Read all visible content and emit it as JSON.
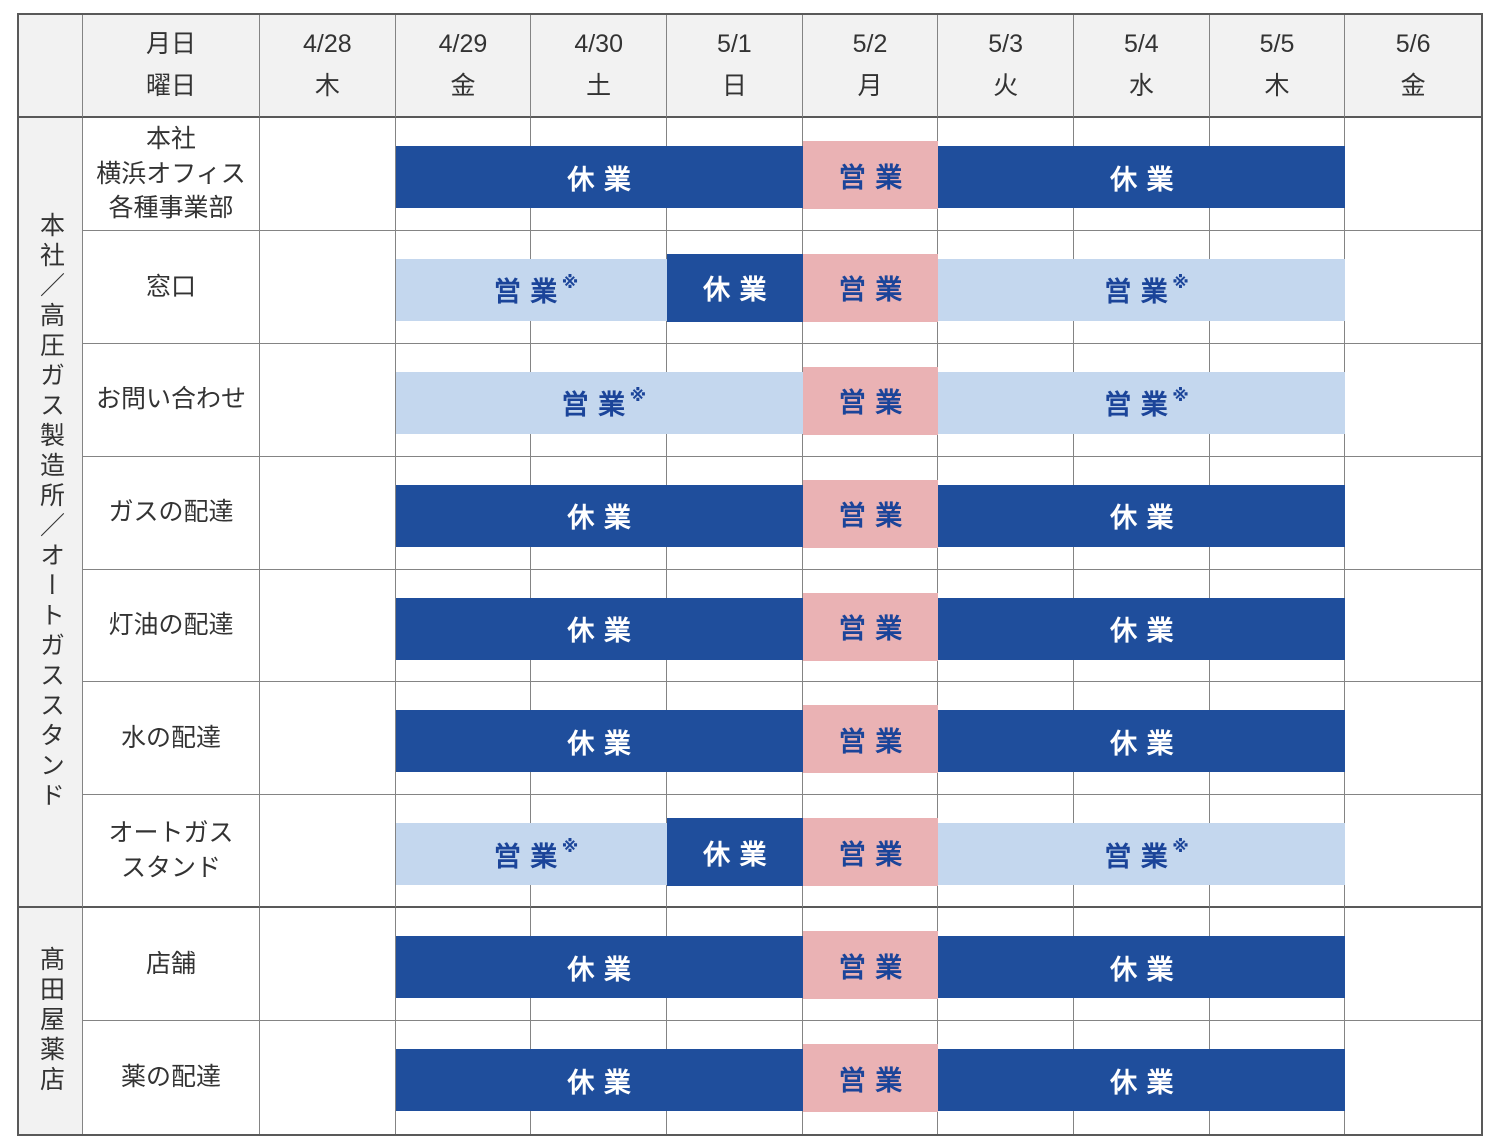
{
  "chart_data": {
    "type": "table",
    "description_kind": "golden-week-business-hours-calendar",
    "corner_header": [
      "月日",
      "曜日"
    ],
    "columns": [
      {
        "date": "4/28",
        "weekday": "木"
      },
      {
        "date": "4/29",
        "weekday": "金"
      },
      {
        "date": "4/30",
        "weekday": "土"
      },
      {
        "date": "5/1",
        "weekday": "日"
      },
      {
        "date": "5/2",
        "weekday": "月"
      },
      {
        "date": "5/3",
        "weekday": "火"
      },
      {
        "date": "5/4",
        "weekday": "水"
      },
      {
        "date": "5/5",
        "weekday": "木"
      },
      {
        "date": "5/6",
        "weekday": "金"
      }
    ],
    "status_legend": {
      "closed": {
        "label": "休業",
        "note": "",
        "bg": "#1F4E9C",
        "text": "#FFFFFF"
      },
      "open": {
        "label": "営業",
        "note": "",
        "bg": "#EAB2B4",
        "text": "#1B4499"
      },
      "open_note": {
        "label": "営業",
        "note": "※",
        "bg": "#C4D7EE",
        "text": "#1B4499"
      }
    },
    "header_bg": "#F2F2F2",
    "groups": [
      {
        "group_label": "本社／高圧ガス製造所／オートガススタンド",
        "rows": [
          {
            "label_lines": [
              "本社",
              "横浜オフィス",
              "各種事業部"
            ],
            "statuses": [
              "none",
              "closed",
              "closed",
              "closed",
              "open",
              "closed",
              "closed",
              "closed",
              "none"
            ]
          },
          {
            "label_lines": [
              "窓口"
            ],
            "statuses": [
              "none",
              "open_note",
              "open_note",
              "closed",
              "open",
              "open_note",
              "open_note",
              "open_note",
              "none"
            ]
          },
          {
            "label_lines": [
              "お問い合わせ"
            ],
            "statuses": [
              "none",
              "open_note",
              "open_note",
              "open_note",
              "open",
              "open_note",
              "open_note",
              "open_note",
              "none"
            ]
          },
          {
            "label_lines": [
              "ガスの配達"
            ],
            "statuses": [
              "none",
              "closed",
              "closed",
              "closed",
              "open",
              "closed",
              "closed",
              "closed",
              "none"
            ]
          },
          {
            "label_lines": [
              "灯油の配達"
            ],
            "statuses": [
              "none",
              "closed",
              "closed",
              "closed",
              "open",
              "closed",
              "closed",
              "closed",
              "none"
            ]
          },
          {
            "label_lines": [
              "水の配達"
            ],
            "statuses": [
              "none",
              "closed",
              "closed",
              "closed",
              "open",
              "closed",
              "closed",
              "closed",
              "none"
            ]
          },
          {
            "label_lines": [
              "オートガス",
              "スタンド"
            ],
            "statuses": [
              "none",
              "open_note",
              "open_note",
              "closed",
              "open",
              "open_note",
              "open_note",
              "open_note",
              "none"
            ]
          }
        ]
      },
      {
        "group_label": "髙田屋薬店",
        "rows": [
          {
            "label_lines": [
              "店舗"
            ],
            "statuses": [
              "none",
              "closed",
              "closed",
              "closed",
              "open",
              "closed",
              "closed",
              "closed",
              "none"
            ]
          },
          {
            "label_lines": [
              "薬の配達"
            ],
            "statuses": [
              "none",
              "closed",
              "closed",
              "closed",
              "open",
              "closed",
              "closed",
              "closed",
              "none"
            ]
          }
        ]
      }
    ]
  }
}
